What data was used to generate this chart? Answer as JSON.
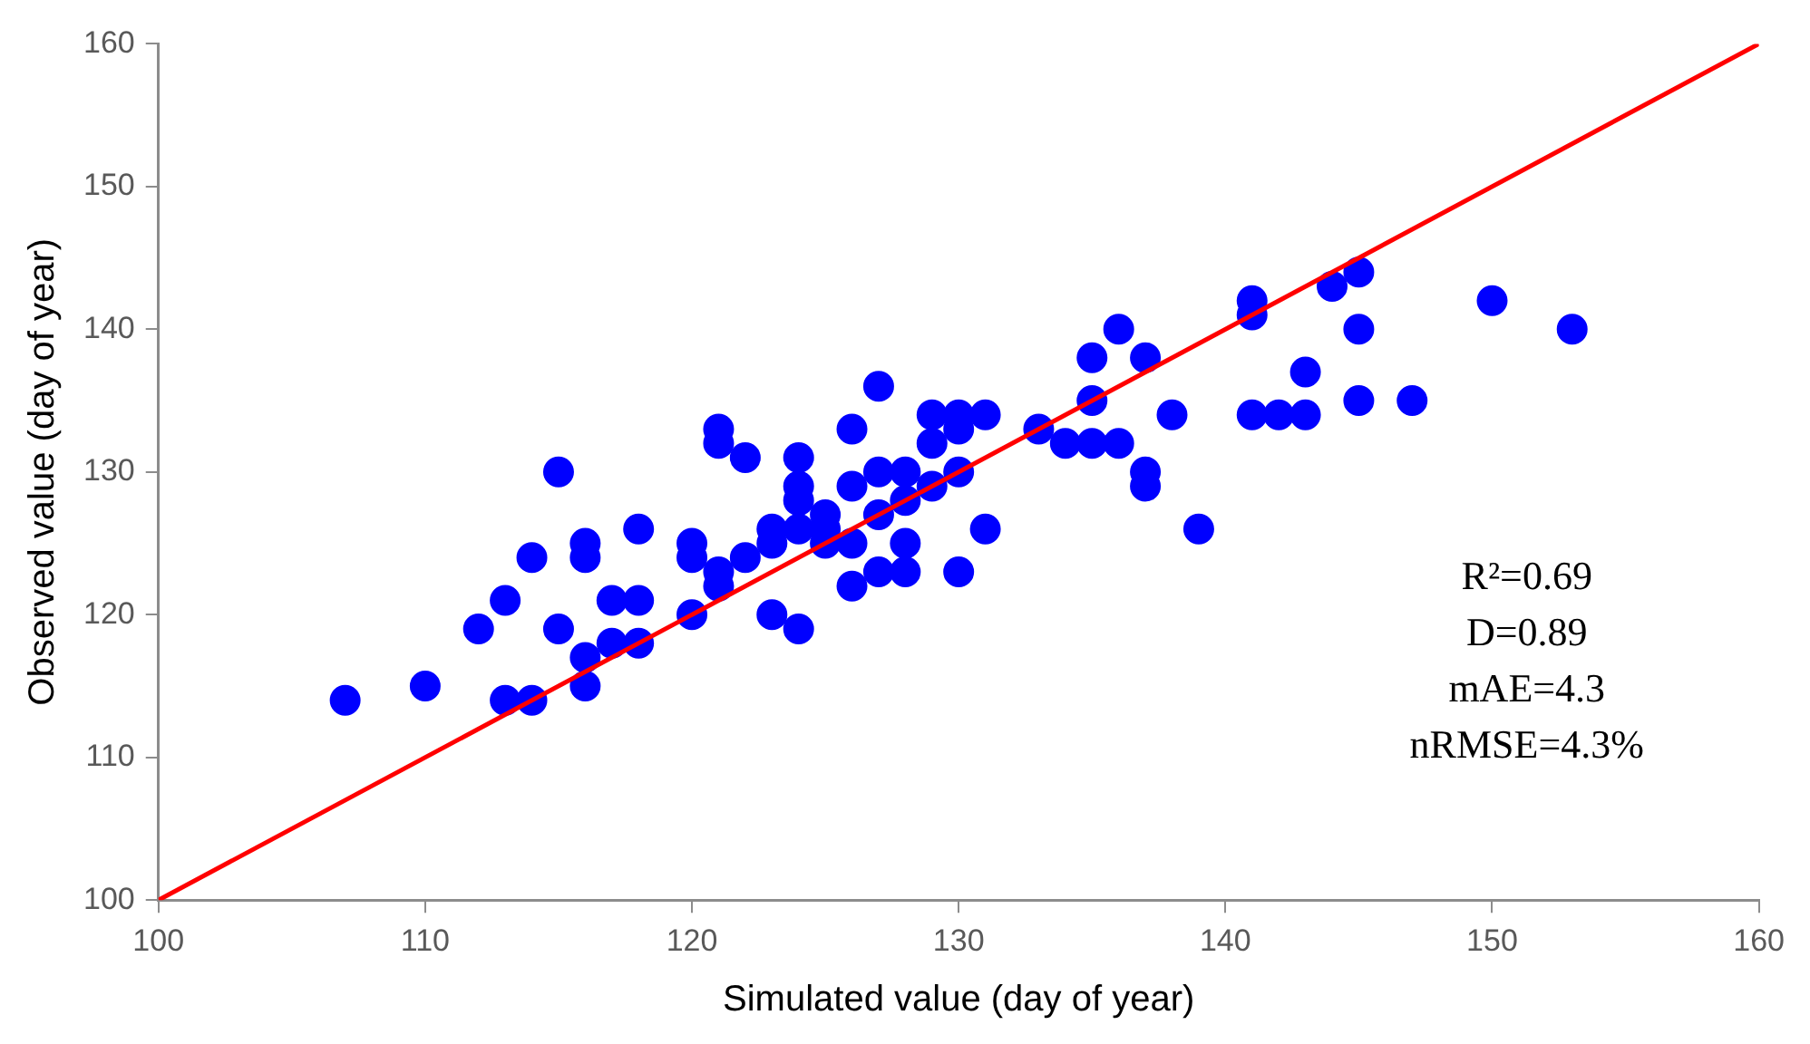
{
  "chart_data": {
    "type": "scatter",
    "xlabel": "Simulated value (day of year)",
    "ylabel": "Observed value (day of year)",
    "xlim": [
      100,
      160
    ],
    "xticks": [
      100,
      110,
      120,
      130,
      140,
      150,
      160
    ],
    "ylim": [
      100,
      160
    ],
    "yticks": [
      100,
      110,
      120,
      130,
      140,
      150,
      160
    ],
    "grid": false,
    "legend": false,
    "marker": "circle",
    "annotations": [
      "R²=0.69",
      "D=0.89",
      "mAE=4.3",
      "nRMSE=4.3%"
    ],
    "series": [
      {
        "color": "#0000ff",
        "x": [
          107,
          110,
          112,
          113,
          113,
          114,
          114,
          115,
          115,
          116,
          116,
          116,
          116,
          117,
          117,
          118,
          118,
          118,
          120,
          120,
          120,
          121,
          121,
          121,
          121,
          122,
          122,
          123,
          123,
          123,
          124,
          124,
          124,
          124,
          124,
          125,
          125,
          125,
          126,
          126,
          126,
          126,
          127,
          127,
          127,
          127,
          128,
          128,
          128,
          128,
          129,
          129,
          129,
          130,
          130,
          130,
          130,
          131,
          131,
          133,
          134,
          135,
          135,
          135,
          136,
          136,
          137,
          137,
          137,
          138,
          139,
          141,
          141,
          141,
          142,
          143,
          143,
          144,
          145,
          145,
          145,
          147,
          150,
          153
        ],
        "values": [
          114,
          115,
          119,
          121,
          114,
          114,
          124,
          130,
          119,
          117,
          115,
          124,
          125,
          121,
          118,
          121,
          118,
          126,
          125,
          124,
          120,
          133,
          132,
          123,
          122,
          131,
          124,
          126,
          125,
          120,
          131,
          129,
          128,
          126,
          119,
          127,
          126,
          125,
          133,
          129,
          125,
          122,
          136,
          130,
          127,
          123,
          130,
          128,
          125,
          123,
          134,
          132,
          129,
          134,
          133,
          130,
          123,
          134,
          126,
          133,
          132,
          138,
          135,
          132,
          140,
          132,
          138,
          130,
          129,
          134,
          126,
          142,
          141,
          134,
          134,
          137,
          134,
          143,
          144,
          140,
          135,
          135,
          142,
          140
        ]
      },
      {
        "type": "line",
        "color": "#ff0000",
        "marker": "none",
        "x": [
          100,
          160
        ],
        "values": [
          100,
          160
        ]
      }
    ]
  }
}
